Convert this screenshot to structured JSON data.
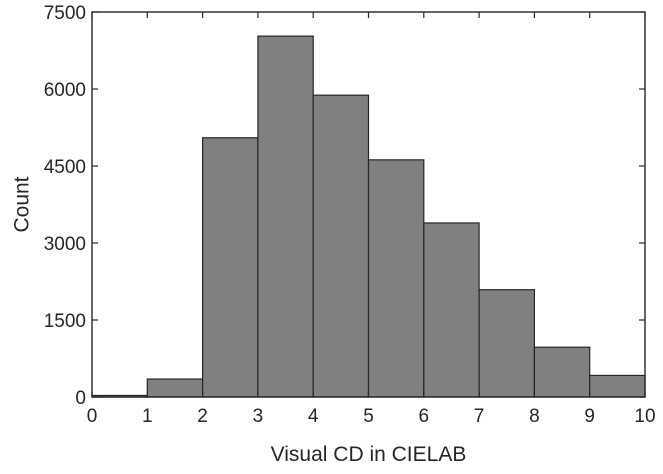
{
  "chart_data": {
    "type": "bar",
    "subtype": "histogram",
    "bin_edges": [
      0,
      1,
      2,
      3,
      4,
      5,
      6,
      7,
      8,
      9,
      10
    ],
    "values": [
      30,
      350,
      5050,
      7030,
      5880,
      4620,
      3390,
      2090,
      970,
      420
    ],
    "xlabel": "Visual CD in CIELAB",
    "ylabel": "Count",
    "xlim": [
      0,
      10
    ],
    "ylim": [
      0,
      7500
    ],
    "xticks": [
      "0",
      "1",
      "2",
      "3",
      "4",
      "5",
      "6",
      "7",
      "8",
      "9",
      "10"
    ],
    "yticks": [
      "0",
      "1500",
      "3000",
      "4500",
      "6000",
      "7500"
    ],
    "grid": false,
    "bar_color": "#808080",
    "edge_color": "#262626"
  }
}
